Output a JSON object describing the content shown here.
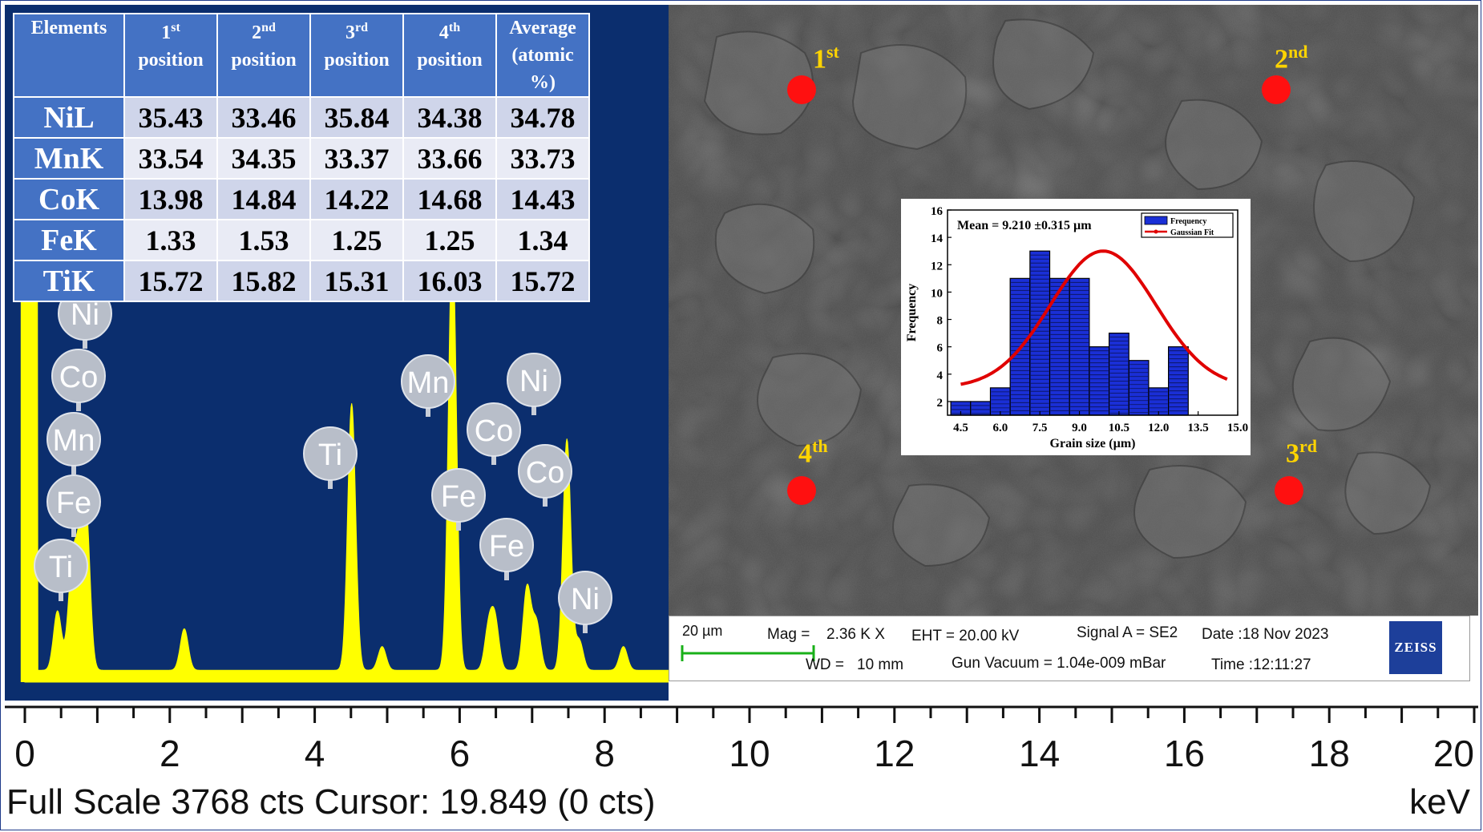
{
  "table": {
    "headers": [
      {
        "main": "Elements",
        "sup": "",
        "line2": "",
        "line3": ""
      },
      {
        "main": "1",
        "sup": "st",
        "line2": "position",
        "line3": ""
      },
      {
        "main": "2",
        "sup": "nd",
        "line2": "position",
        "line3": ""
      },
      {
        "main": "3",
        "sup": "rd",
        "line2": "position",
        "line3": ""
      },
      {
        "main": "4",
        "sup": "th",
        "line2": "position",
        "line3": ""
      },
      {
        "main": "Average",
        "sup": "",
        "line2": "(atomic",
        "line3": "%)"
      }
    ],
    "rows": [
      {
        "element": "NiL",
        "values": [
          "35.43",
          "33.46",
          "35.84",
          "34.38",
          "34.78"
        ]
      },
      {
        "element": "MnK",
        "values": [
          "33.54",
          "34.35",
          "33.37",
          "33.66",
          "33.73"
        ]
      },
      {
        "element": "CoK",
        "values": [
          "13.98",
          "14.84",
          "14.22",
          "14.68",
          "14.43"
        ]
      },
      {
        "element": "FeK",
        "values": [
          "1.33",
          "1.53",
          "1.25",
          "1.25",
          "1.34"
        ]
      },
      {
        "element": "TiK",
        "values": [
          "15.72",
          "15.82",
          "15.31",
          "16.03",
          "15.72"
        ]
      }
    ]
  },
  "sem": {
    "positions": [
      {
        "num": "1",
        "sup": "st"
      },
      {
        "num": "2",
        "sup": "nd"
      },
      {
        "num": "3",
        "sup": "rd"
      },
      {
        "num": "4",
        "sup": "th"
      }
    ],
    "info": {
      "scale": "20 µm",
      "mag_label": "Mag =",
      "mag_value": "2.36 K X",
      "eht": "EHT = 20.00 kV",
      "signal": "Signal A = SE2",
      "date": "Date :18 Nov 2023",
      "wd_label": "WD =",
      "wd_value": "10 mm",
      "vacuum": "Gun Vacuum = 1.04e-009 mBar",
      "time": "Time :12:11:27",
      "logo": "ZEISS"
    }
  },
  "colors": {
    "table_header": "#4472c4",
    "spectrum_bg": "#0b2e6e",
    "spectrum_trace": "#ffff00",
    "marker": "#ff1010",
    "position_label": "#ffd400",
    "histogram_bar": "#1a2fd6",
    "gaussian_fit": "#e00000"
  },
  "axis": {
    "footer": "Full Scale 3768 cts Cursor: 19.849  (0 cts)",
    "unit": "keV"
  },
  "chart_data": [
    {
      "type": "line",
      "xlim": [
        0,
        20
      ],
      "x_ticks": [
        "0",
        "2",
        "4",
        "6",
        "8",
        "10",
        "12",
        "14",
        "16",
        "18",
        "20"
      ],
      "peaks": [
        {
          "label": "Ni",
          "energy": 0.85,
          "height": 0.22
        },
        {
          "label": "Co",
          "energy": 0.78,
          "height": 0.15
        },
        {
          "label": "Mn",
          "energy": 0.64,
          "height": 0.12
        },
        {
          "label": "Fe",
          "energy": 0.7,
          "height": 0.1
        },
        {
          "label": "Ti",
          "energy": 0.45,
          "height": 0.1
        },
        {
          "label": "",
          "energy": 2.2,
          "height": 0.07
        },
        {
          "label": "Ti",
          "energy": 4.51,
          "height": 0.45
        },
        {
          "label": "",
          "energy": 4.93,
          "height": 0.04
        },
        {
          "label": "Mn",
          "energy": 5.9,
          "height": 0.73
        },
        {
          "label": "Fe",
          "energy": 6.4,
          "height": 0.07
        },
        {
          "label": "Mn",
          "energy": 6.49,
          "height": 0.08
        },
        {
          "label": "Co",
          "energy": 6.93,
          "height": 0.14
        },
        {
          "label": "Fe",
          "energy": 7.06,
          "height": 0.08
        },
        {
          "label": "Ni",
          "energy": 7.48,
          "height": 0.39
        },
        {
          "label": "Co",
          "energy": 7.65,
          "height": 0.05
        },
        {
          "label": "Ni",
          "energy": 8.26,
          "height": 0.04
        }
      ],
      "peak_badges": [
        "Ni",
        "Co",
        "Mn",
        "Fe",
        "Ti",
        "Ti",
        "Mn",
        "Ni",
        "Co",
        "Fe",
        "Co",
        "Fe",
        "Ni"
      ]
    },
    {
      "type": "bar",
      "title": "Mean  = 9.210 ±0.315 µm",
      "xlabel": "Grain size (µm)",
      "ylabel": "Frequency",
      "xlim": [
        4.0,
        15.0
      ],
      "ylim": [
        1,
        16
      ],
      "x_ticks": [
        "4.5",
        "6.0",
        "7.5",
        "9.0",
        "10.5",
        "12.0",
        "13.5",
        "15.0"
      ],
      "y_ticks": [
        "2",
        "4",
        "6",
        "8",
        "10",
        "12",
        "14",
        "16"
      ],
      "bin_centers": [
        4.5,
        5.25,
        6.0,
        6.75,
        7.5,
        8.25,
        9.0,
        9.75,
        10.5,
        11.25,
        12.0,
        12.75,
        13.5,
        14.25
      ],
      "bin_width": 0.75,
      "values": [
        2,
        2,
        3,
        11,
        13,
        11,
        11,
        6,
        7,
        5,
        3,
        6,
        0,
        0
      ],
      "legend": [
        "Frequency",
        "Gaussian Fit"
      ],
      "gaussian_fit": {
        "center": 9.9,
        "sigma": 2.0,
        "amplitude": 13.0,
        "baseline": 3.0,
        "x_range": [
          4.5,
          14.6
        ]
      }
    }
  ]
}
